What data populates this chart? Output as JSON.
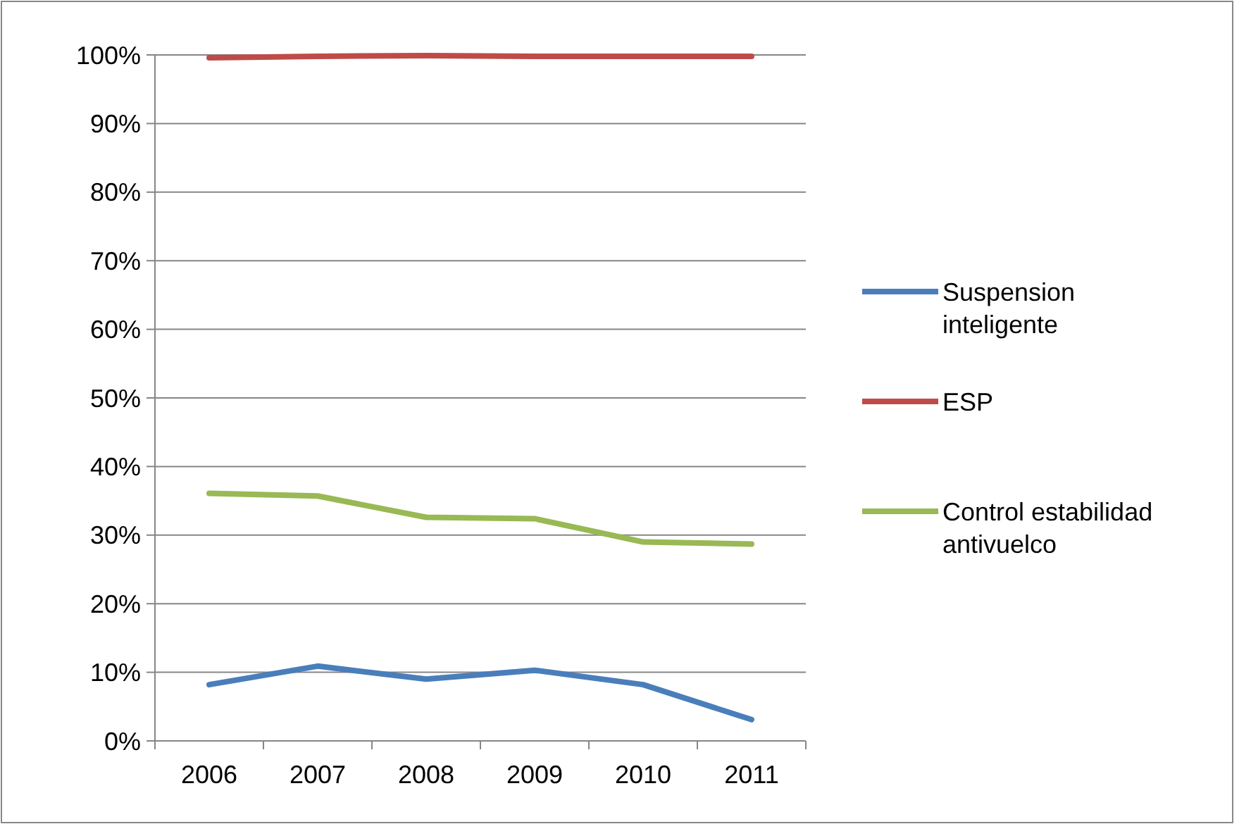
{
  "chart_data": {
    "type": "line",
    "categories": [
      "2006",
      "2007",
      "2008",
      "2009",
      "2010",
      "2011"
    ],
    "series": [
      {
        "name": "Suspension inteligente",
        "color": "#4a7ebb",
        "values": [
          8.2,
          10.9,
          9.0,
          10.3,
          8.2,
          3.1
        ]
      },
      {
        "name": "ESP",
        "color": "#be4b48",
        "values": [
          99.6,
          99.8,
          99.9,
          99.8,
          99.8,
          99.8
        ]
      },
      {
        "name": "Control estabilidad antivuelco",
        "color": "#98b954",
        "values": [
          36.1,
          35.7,
          32.6,
          32.4,
          29.0,
          28.7
        ]
      }
    ],
    "ylim": [
      0,
      100
    ],
    "yticks": [
      {
        "value": 0,
        "label": "0%"
      },
      {
        "value": 10,
        "label": "10%"
      },
      {
        "value": 20,
        "label": "20%"
      },
      {
        "value": 30,
        "label": "30%"
      },
      {
        "value": 40,
        "label": "40%"
      },
      {
        "value": 50,
        "label": "50%"
      },
      {
        "value": 60,
        "label": "60%"
      },
      {
        "value": 70,
        "label": "70%"
      },
      {
        "value": 80,
        "label": "80%"
      },
      {
        "value": 90,
        "label": "90%"
      },
      {
        "value": 100,
        "label": "100%"
      }
    ],
    "grid": "y",
    "legend": "right",
    "marker": "none",
    "line_style": "solid"
  }
}
